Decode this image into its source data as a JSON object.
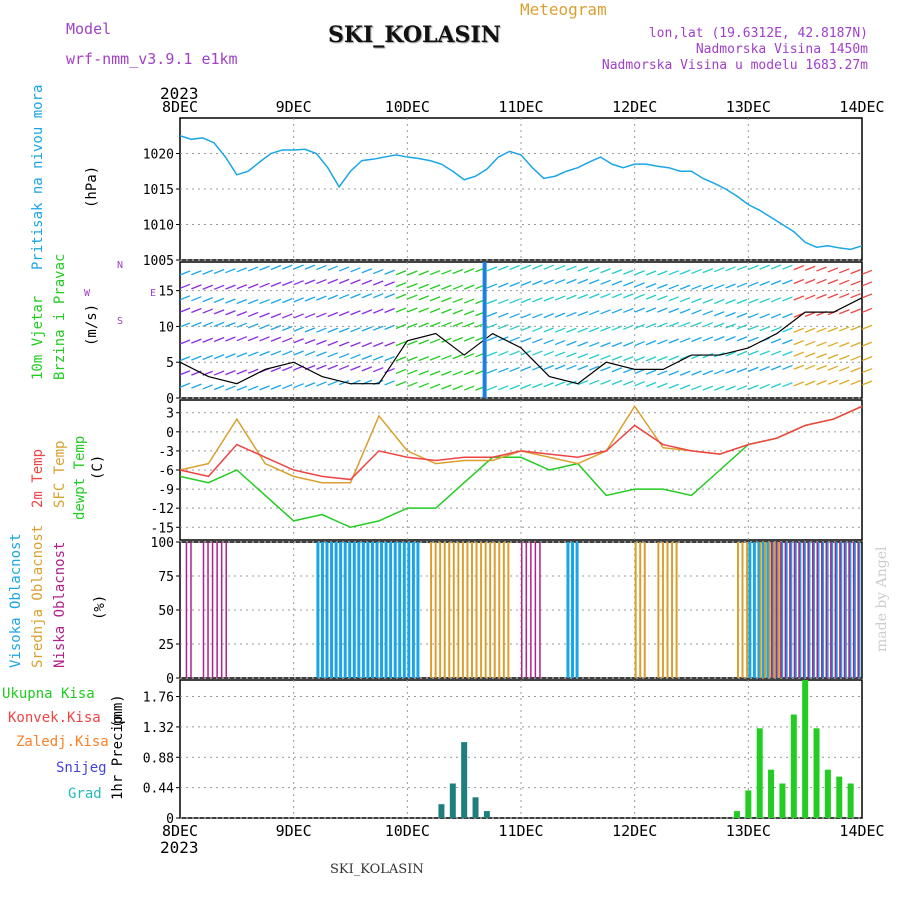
{
  "header": {
    "model_label": "Model",
    "model_name": "wrf-nmm_v3.9.1 e1km",
    "station": "SKI_KOLASIN",
    "product": "Meteogram",
    "lonlat": "lon,lat (19.6312E, 42.8187N)",
    "elevation": "Nadmorska Visina 1450m",
    "elevation_model": "Nadmorska Visina u modelu 1683.27m",
    "footer_station": "SKI_KOLASIN",
    "credit": "made by Angel",
    "year_top": "2023",
    "year_bottom": "2023"
  },
  "colors": {
    "pressure": "#1aa6e6",
    "t2m": "#ee4444",
    "tsfc": "#d9a030",
    "dewpt": "#22cc22",
    "cloud_high": "#1aa6e6",
    "cloud_mid": "#d9a030",
    "cloud_low": "#b0208c",
    "precip_total": "#22cc22",
    "precip_conv": "#ee4444",
    "precip_frozen": "#ff7f27",
    "snow": "#4444dd",
    "grad": "#22bbbb"
  },
  "time_axis": {
    "ticks": [
      "8DEC",
      "9DEC",
      "10DEC",
      "11DEC",
      "12DEC",
      "13DEC",
      "14DEC"
    ]
  },
  "panels": {
    "pressure": {
      "label_main": "Pritisak na nivou mora",
      "label_unit": "(hPa)"
    },
    "wind": {
      "label_main": "10m Vjetar",
      "label_sub": "Brzina i Pravac",
      "label_unit": "(m/s)",
      "compass_w": "W",
      "compass_e": "E",
      "compass_s": "S",
      "compass_n": "N"
    },
    "temp": {
      "label_t2m": "2m Temp",
      "label_tsfc": "SFC Temp",
      "label_dew": "dewpt Temp",
      "label_unit": "(C)"
    },
    "cloud": {
      "label_high": "Visoka Oblacnost",
      "label_mid": "Srednja Oblacnost",
      "label_low": "Niska Oblacnost",
      "label_unit": "(%)"
    },
    "precip": {
      "label_main": "1hr Precip",
      "label_unit": "(mm)",
      "legend": [
        "Ukupna Kisa",
        "Konvek.Kisa",
        "Zaledj.Kisa",
        "Snijeg",
        "Grad"
      ]
    }
  },
  "chart_data": [
    {
      "type": "line",
      "name": "pressure",
      "ylim": [
        1005,
        1025
      ],
      "yticks": [
        1005,
        1010,
        1015,
        1020
      ],
      "x": [
        0,
        0.1,
        0.2,
        0.3,
        0.4,
        0.5,
        0.6,
        0.7,
        0.8,
        0.9,
        1.0,
        1.1,
        1.2,
        1.3,
        1.4,
        1.5,
        1.6,
        1.7,
        1.8,
        1.9,
        2.0,
        2.1,
        2.2,
        2.3,
        2.4,
        2.5,
        2.6,
        2.7,
        2.8,
        2.9,
        3.0,
        3.1,
        3.2,
        3.3,
        3.4,
        3.5,
        3.6,
        3.7,
        3.8,
        3.9,
        4.0,
        4.1,
        4.2,
        4.3,
        4.4,
        4.5,
        4.6,
        4.7,
        4.8,
        4.9,
        5.0,
        5.1,
        5.2,
        5.3,
        5.4,
        5.5,
        5.6,
        5.7,
        5.8,
        5.9,
        6.0
      ],
      "series": [
        {
          "values": [
            1022.5,
            1022.0,
            1022.2,
            1021.5,
            1019.5,
            1017.0,
            1017.5,
            1018.8,
            1020.0,
            1020.5,
            1020.5,
            1020.6,
            1020.0,
            1018.0,
            1015.3,
            1017.5,
            1019.0,
            1019.2,
            1019.5,
            1019.8,
            1019.5,
            1019.3,
            1019.0,
            1018.5,
            1017.5,
            1016.3,
            1016.8,
            1017.8,
            1019.5,
            1020.3,
            1019.8,
            1018.0,
            1016.5,
            1016.8,
            1017.5,
            1018.0,
            1018.8,
            1019.5,
            1018.5,
            1018.0,
            1018.5,
            1018.5,
            1018.2,
            1018.0,
            1017.5,
            1017.5,
            1016.5,
            1015.8,
            1015.0,
            1014.0,
            1012.8,
            1012.0,
            1011.0,
            1010.0,
            1009.0,
            1007.5,
            1006.8,
            1007.0,
            1006.7,
            1006.5,
            1007.0
          ]
        }
      ]
    },
    {
      "type": "line",
      "name": "wind_speed",
      "ylim": [
        0,
        19
      ],
      "yticks": [
        0,
        5,
        10,
        15
      ],
      "x": [
        0,
        0.25,
        0.5,
        0.75,
        1.0,
        1.25,
        1.5,
        1.75,
        2.0,
        2.25,
        2.5,
        2.75,
        3.0,
        3.25,
        3.5,
        3.75,
        4.0,
        4.25,
        4.5,
        4.75,
        5.0,
        5.25,
        5.5,
        5.75,
        6.0
      ],
      "series": [
        {
          "values": [
            5,
            3,
            2,
            4,
            5,
            3,
            2,
            2,
            8,
            9,
            6,
            9,
            7,
            3,
            2,
            5,
            4,
            4,
            6,
            6,
            7,
            9,
            12,
            12,
            14
          ]
        }
      ]
    },
    {
      "type": "line",
      "name": "temperature",
      "ylim": [
        -17,
        5
      ],
      "yticks": [
        -15,
        -12,
        -9,
        -6,
        -3,
        0,
        3
      ],
      "x": [
        0,
        0.25,
        0.5,
        0.75,
        1.0,
        1.25,
        1.5,
        1.75,
        2.0,
        2.25,
        2.5,
        2.75,
        3.0,
        3.25,
        3.5,
        3.75,
        4.0,
        4.25,
        4.5,
        4.75,
        5.0,
        5.25,
        5.5,
        5.75,
        6.0
      ],
      "series": [
        {
          "name": "2m Temp",
          "values": [
            -6,
            -7,
            -2,
            -4,
            -6,
            -7,
            -7.5,
            -3,
            -4,
            -4.5,
            -4,
            -4,
            -3,
            -3.5,
            -4,
            -3,
            1,
            -2,
            -3,
            -3.5,
            -2,
            -1,
            1,
            2,
            4
          ]
        },
        {
          "name": "SFC Temp",
          "values": [
            -6,
            -5,
            2,
            -5,
            -7,
            -8,
            -8,
            2.5,
            -3,
            -5,
            -4.5,
            -4.5,
            -3,
            -4,
            -5,
            -3,
            4,
            -2.5,
            -3,
            -3.5,
            -2,
            -1,
            1,
            2,
            4
          ]
        },
        {
          "name": "dewpt Temp",
          "values": [
            -7,
            -8,
            -6,
            -10,
            -14,
            -13,
            -15,
            -14,
            -12,
            -12,
            -8,
            -4,
            -4,
            -6,
            -5,
            -10,
            -9,
            -9,
            -10,
            -6,
            -2,
            -1,
            1,
            2,
            4
          ]
        }
      ]
    },
    {
      "type": "bar",
      "name": "cloud_cover",
      "ylim": [
        0,
        100
      ],
      "yticks": [
        0,
        25,
        50,
        75,
        100
      ],
      "high_segments": [
        [
          1.2,
          1.4
        ],
        [
          1.4,
          2.1
        ],
        [
          3.4,
          3.5
        ],
        [
          5.0,
          6.0
        ]
      ],
      "mid_segments": [
        [
          2.2,
          2.9
        ],
        [
          4.0,
          4.1
        ],
        [
          4.2,
          4.4
        ],
        [
          4.9,
          5.0
        ],
        [
          5.1,
          5.3
        ]
      ],
      "low_segments": [
        [
          0.05,
          0.1
        ],
        [
          0.2,
          0.4
        ],
        [
          3.0,
          3.2
        ],
        [
          5.2,
          6.0
        ]
      ]
    },
    {
      "type": "bar",
      "name": "precip",
      "ylim": [
        0,
        2.0
      ],
      "yticks": [
        0,
        0.44,
        0.88,
        1.32,
        1.76
      ],
      "x": [
        2.3,
        2.4,
        2.5,
        2.6,
        2.7,
        4.9,
        5.0,
        5.1,
        5.2,
        5.3,
        5.4,
        5.5,
        5.6,
        5.7,
        5.8,
        5.9
      ],
      "values": [
        0.2,
        0.5,
        1.1,
        0.3,
        0.1,
        0.1,
        0.4,
        1.3,
        0.7,
        0.5,
        1.5,
        2.0,
        1.3,
        0.7,
        0.6,
        0.5
      ]
    }
  ]
}
